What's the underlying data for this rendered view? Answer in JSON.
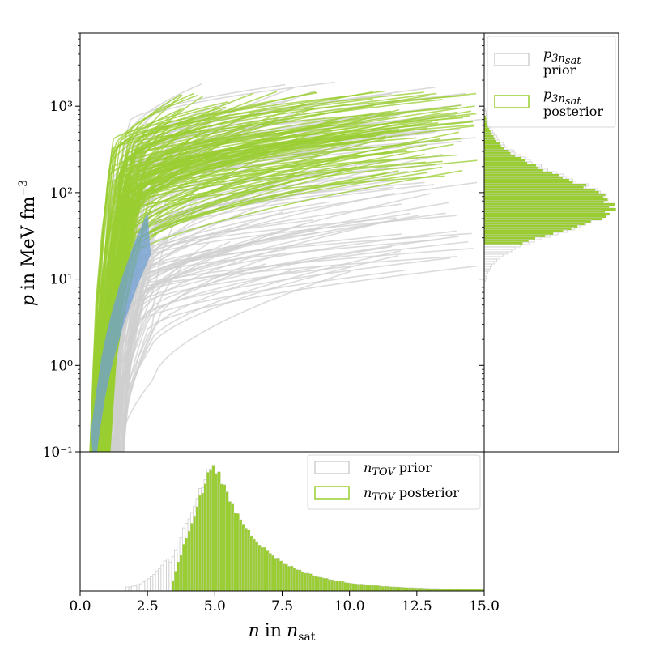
{
  "chart_data": [
    {
      "panel": "main",
      "type": "line",
      "ylabel": "p in MeV fm⁻³",
      "ylabel_italic": "p",
      "ylabel_rest": "in MeV fm",
      "ylabel_sup": "−3",
      "yscale": "log",
      "xlim": [
        0,
        15
      ],
      "ylim": [
        0.1,
        7000
      ],
      "y_tick_labels": [
        "10⁻¹",
        "10⁰",
        "10¹",
        "10²",
        "10³"
      ],
      "y_tick_values": [
        0.1,
        1,
        10,
        100,
        1000
      ],
      "series": [
        {
          "role": "prior",
          "color": "#cfcfcf",
          "samples": 120,
          "n_start_range": [
            0.5,
            1.6
          ],
          "n_end_range": [
            2.5,
            15
          ],
          "p_end_range": [
            12,
            2000
          ]
        },
        {
          "role": "posterior",
          "color": "#9acd32",
          "samples": 140,
          "n_start_range": [
            0.35,
            1.1
          ],
          "n_end_range": [
            3,
            15
          ],
          "p_end_range": [
            150,
            1600
          ]
        },
        {
          "role": "low-density band",
          "color": "#6f9fd3",
          "x": [
            0.4,
            0.6,
            0.8,
            1.0,
            1.2,
            1.5,
            2.0,
            2.5
          ],
          "y": [
            0.1,
            0.3,
            0.75,
            1.5,
            2.6,
            5.5,
            15,
            35
          ]
        }
      ]
    },
    {
      "panel": "right histogram",
      "type": "histogram",
      "orientation": "horizontal",
      "legend": [
        {
          "symbol": "p",
          "sub": "3n",
          "subsub": "sat",
          "label": "prior",
          "color": "#cfcfcf"
        },
        {
          "symbol": "p",
          "sub": "3n",
          "subsub": "sat",
          "label": "posterior",
          "color": "#9acd32"
        }
      ],
      "legend_position": "upper-right",
      "posterior_log_p_range": [
        1.4,
        2.9
      ],
      "posterior_peak_log_p": 1.82,
      "prior_log_p_range": [
        0.35,
        3.0
      ]
    },
    {
      "panel": "bottom histogram",
      "type": "histogram",
      "xlabel": "n in n_sat",
      "xlabel_italic": "n",
      "xlabel_in": "in",
      "xlabel_sub": "sat",
      "xlim": [
        0,
        15
      ],
      "x_ticks": [
        0.0,
        2.5,
        5.0,
        7.5,
        10.0,
        12.5,
        15.0
      ],
      "x_tick_labels": [
        "0.0",
        "2.5",
        "5.0",
        "7.5",
        "10.0",
        "12.5",
        "15.0"
      ],
      "legend": [
        {
          "symbol": "n",
          "sub": "TOV",
          "label": "prior",
          "color": "#cfcfcf"
        },
        {
          "symbol": "n",
          "sub": "TOV",
          "label": "posterior",
          "color": "#9acd32"
        }
      ],
      "legend_position": "upper-right",
      "posterior_start": 3.35,
      "peak": 4.95,
      "prior_start": 1.7
    }
  ],
  "colors": {
    "prior": "#cfcfcf",
    "posterior": "#9acd32",
    "band": "#6f9fd3"
  }
}
